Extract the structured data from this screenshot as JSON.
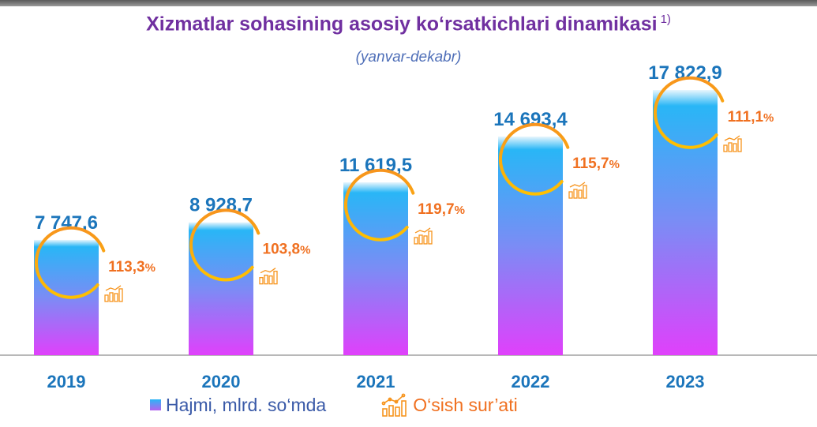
{
  "title": "Xizmatlar sohasining asosiy ko‘rsatkichlari dinamikasi",
  "title_note": "1)",
  "subtitle": "(yanvar-dekabr)",
  "legend": {
    "volume_label": "Hajmi, mlrd. so‘mda",
    "growth_label": "O‘sish sur’ati"
  },
  "colors": {
    "title": "#7030a0",
    "bar_top": "#29b6f6",
    "bar_bottom": "#e040fb",
    "value_label": "#1b75bb",
    "year_label": "#1b75bb",
    "growth_text": "#f07020",
    "growth_ring": "#f7941d"
  },
  "chart_data": {
    "type": "bar",
    "title": "Xizmatlar sohasining asosiy ko‘rsatkichlari dinamikasi",
    "subtitle": "(yanvar-dekabr)",
    "categories": [
      "2019",
      "2020",
      "2021",
      "2022",
      "2023"
    ],
    "series": [
      {
        "name": "Hajmi, mlrd. so‘mda",
        "values": [
          7747.6,
          8928.7,
          11619.5,
          14693.4,
          17822.9
        ],
        "labels": [
          "7 747,6",
          "8 928,7",
          "11 619,5",
          "14 693,4",
          "17 822,9"
        ]
      },
      {
        "name": "O‘sish sur’ati",
        "values": [
          113.3,
          103.8,
          119.7,
          115.7,
          111.1
        ],
        "labels": [
          "113,3",
          "103,8",
          "119,7",
          "115,7",
          "111,1"
        ],
        "unit": "%"
      }
    ],
    "legend": "bottom",
    "grid": false
  }
}
